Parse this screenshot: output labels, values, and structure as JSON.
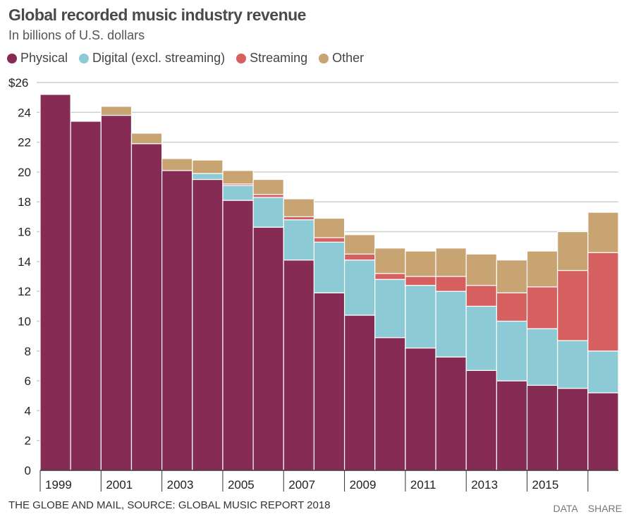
{
  "title": "Global recorded music industry revenue",
  "subtitle": "In billions of U.S. dollars",
  "footer": {
    "source": "THE GLOBE AND MAIL, SOURCE: GLOBAL MUSIC REPORT 2018",
    "data_link": "DATA",
    "share_link": "SHARE"
  },
  "chart_data": {
    "type": "bar",
    "stacked": true,
    "title": "Global recorded music industry revenue",
    "ylabel": "In billions of U.S. dollars",
    "ylim": [
      0,
      26
    ],
    "yticks": [
      0,
      2,
      4,
      6,
      8,
      10,
      12,
      14,
      16,
      18,
      20,
      22,
      24,
      26
    ],
    "ytick_labels": [
      "0",
      "2",
      "4",
      "6",
      "8",
      "10",
      "12",
      "14",
      "16",
      "18",
      "20",
      "22",
      "24",
      "$26"
    ],
    "xtick_labels": [
      "1999",
      "2001",
      "2003",
      "2005",
      "2007",
      "2009",
      "2011",
      "2013",
      "2015"
    ],
    "grid": true,
    "legend_placement": "top-left",
    "categories": [
      "1999",
      "2000",
      "2001",
      "2002",
      "2003",
      "2004",
      "2005",
      "2006",
      "2007",
      "2008",
      "2009",
      "2010",
      "2011",
      "2012",
      "2013",
      "2014",
      "2015",
      "2016",
      "2017"
    ],
    "series": [
      {
        "name": "Physical",
        "color": "#862b54",
        "values": [
          25.2,
          23.4,
          23.8,
          21.9,
          20.1,
          19.5,
          18.1,
          16.3,
          14.1,
          11.9,
          10.4,
          8.9,
          8.2,
          7.6,
          6.7,
          6.0,
          5.7,
          5.5,
          5.2
        ]
      },
      {
        "name": "Digital (excl. streaming)",
        "color": "#8ccbd5",
        "values": [
          0,
          0,
          0,
          0,
          0,
          0.4,
          1.0,
          2.0,
          2.7,
          3.4,
          3.7,
          3.9,
          4.2,
          4.4,
          4.3,
          4.0,
          3.8,
          3.2,
          2.8
        ]
      },
      {
        "name": "Streaming",
        "color": "#d65f5f",
        "values": [
          0,
          0,
          0,
          0,
          0,
          0,
          0.1,
          0.2,
          0.2,
          0.3,
          0.4,
          0.4,
          0.6,
          1.0,
          1.4,
          1.9,
          2.8,
          4.7,
          6.6
        ]
      },
      {
        "name": "Other",
        "color": "#c8a472",
        "values": [
          0,
          0,
          0.6,
          0.7,
          0.8,
          0.9,
          0.9,
          1.0,
          1.2,
          1.3,
          1.3,
          1.7,
          1.7,
          1.9,
          2.1,
          2.2,
          2.4,
          2.6,
          2.7
        ]
      }
    ]
  }
}
